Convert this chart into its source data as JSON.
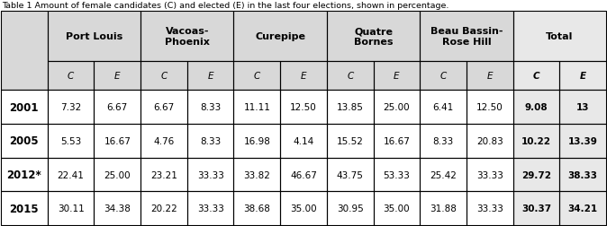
{
  "title": "Table 1 Amount of female candidates (C) and elected (E) in the last four elections, shown in percentage.",
  "col_groups": [
    "Port Louis",
    "Vacoas-\nPhoenix",
    "Curepipe",
    "Quatre\nBornes",
    "Beau Bassin-\nRose Hill",
    "Total"
  ],
  "sub_cols": [
    "C",
    "E",
    "C",
    "E",
    "C",
    "E",
    "C",
    "E",
    "C",
    "E",
    "C",
    "E"
  ],
  "row_labels": [
    "2001",
    "2005",
    "2012*",
    "2015"
  ],
  "data": [
    [
      "7.32",
      "6.67",
      "6.67",
      "8.33",
      "11.11",
      "12.50",
      "13.85",
      "25.00",
      "6.41",
      "12.50",
      "9.08",
      "13"
    ],
    [
      "5.53",
      "16.67",
      "4.76",
      "8.33",
      "16.98",
      "4.14",
      "15.52",
      "16.67",
      "8.33",
      "20.83",
      "10.22",
      "13.39"
    ],
    [
      "22.41",
      "25.00",
      "23.21",
      "33.33",
      "33.82",
      "46.67",
      "43.75",
      "53.33",
      "25.42",
      "33.33",
      "29.72",
      "38.33"
    ],
    [
      "30.11",
      "34.38",
      "20.22",
      "33.33",
      "38.68",
      "35.00",
      "30.95",
      "35.00",
      "31.88",
      "33.33",
      "30.37",
      "34.21"
    ]
  ],
  "bg_header": "#d8d8d8",
  "bg_total": "#e8e8e8",
  "bg_white": "#ffffff",
  "fig_width": 6.74,
  "fig_height": 2.53,
  "dpi": 100
}
